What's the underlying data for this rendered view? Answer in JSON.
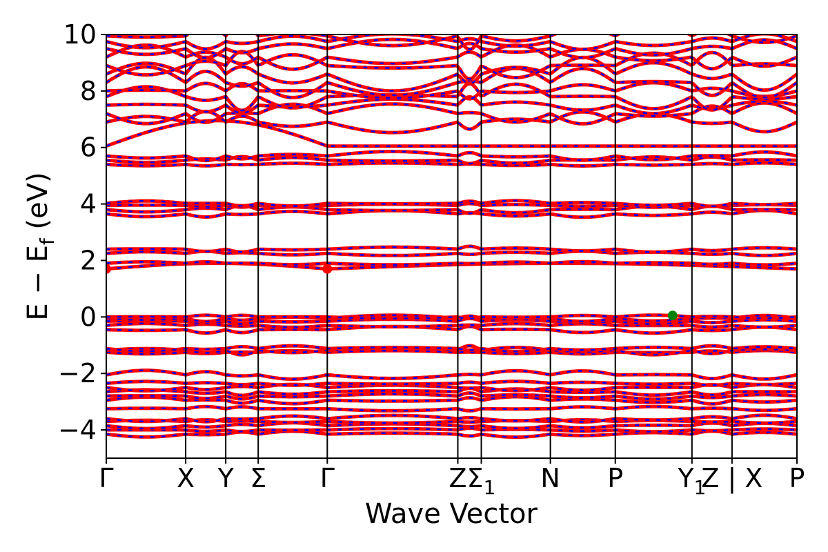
{
  "chart_data": {
    "type": "line",
    "title": "",
    "xlabel": "Wave Vector",
    "ylabel": "E − E_f (eV)",
    "ylabel_main": "E  −  E",
    "ylabel_sub": "f",
    "ylabel_unit": " (eV)",
    "ylim": [
      -5,
      10
    ],
    "yticks": [
      -4,
      -2,
      0,
      2,
      4,
      6,
      8,
      10
    ],
    "ytick_labels": [
      "−4",
      "−2",
      "0",
      "2",
      "4",
      "6",
      "8",
      "10"
    ],
    "grid": false,
    "legend": "none",
    "colors": {
      "band": "#ff0000",
      "band_dash": "#0000ff",
      "cbm": "#ff0000",
      "vbm": "#008000"
    },
    "x_range": [
      0,
      1
    ],
    "high_symmetry_points": [
      {
        "label": "Γ",
        "x": 0.0
      },
      {
        "label": "X",
        "x": 0.115
      },
      {
        "label": "Y",
        "x": 0.173
      },
      {
        "label": "Σ",
        "x": 0.22
      },
      {
        "label": "Γ",
        "x": 0.32
      },
      {
        "label": "Z",
        "x": 0.509
      },
      {
        "label": "Σ",
        "sub": "1",
        "x": 0.543
      },
      {
        "label": "N",
        "x": 0.643
      },
      {
        "label": "P",
        "x": 0.737
      },
      {
        "label": "Y",
        "sub": "1",
        "x": 0.848
      },
      {
        "label": "Z | X",
        "x": 0.906
      },
      {
        "label": "P",
        "x": 1.0
      }
    ],
    "band_groups": [
      {
        "name": "valence-low",
        "base": [
          -4.15,
          -4.0,
          -3.85,
          -3.7,
          -3.6
        ]
      },
      {
        "name": "valence-mid",
        "base": [
          -3.25,
          -2.95,
          -2.8,
          -2.65,
          -2.5,
          -2.35,
          -2.05
        ]
      },
      {
        "name": "valence-d",
        "base": [
          -1.25,
          -1.18,
          -1.12
        ]
      },
      {
        "name": "valence-top",
        "base": [
          -0.45,
          -0.3,
          -0.15,
          -0.05,
          0.0
        ]
      },
      {
        "name": "conduction-1",
        "base": [
          1.7,
          1.9,
          2.25,
          2.4
        ]
      },
      {
        "name": "conduction-2",
        "base": [
          3.65,
          3.8,
          3.95,
          4.02
        ]
      },
      {
        "name": "conduction-3",
        "base": [
          5.4,
          5.55,
          5.7
        ]
      },
      {
        "name": "conduction-4",
        "base": [
          6.05,
          6.9,
          7.2,
          7.5,
          7.8,
          8.0,
          8.3,
          8.6,
          8.9,
          9.2,
          9.5,
          9.75,
          9.95
        ]
      }
    ],
    "extrema": [
      {
        "name": "cbm",
        "x": 0.0,
        "y": 1.7
      },
      {
        "name": "cbm",
        "x": 0.32,
        "y": 1.7
      },
      {
        "name": "vbm",
        "x": 0.82,
        "y": 0.05
      }
    ]
  }
}
